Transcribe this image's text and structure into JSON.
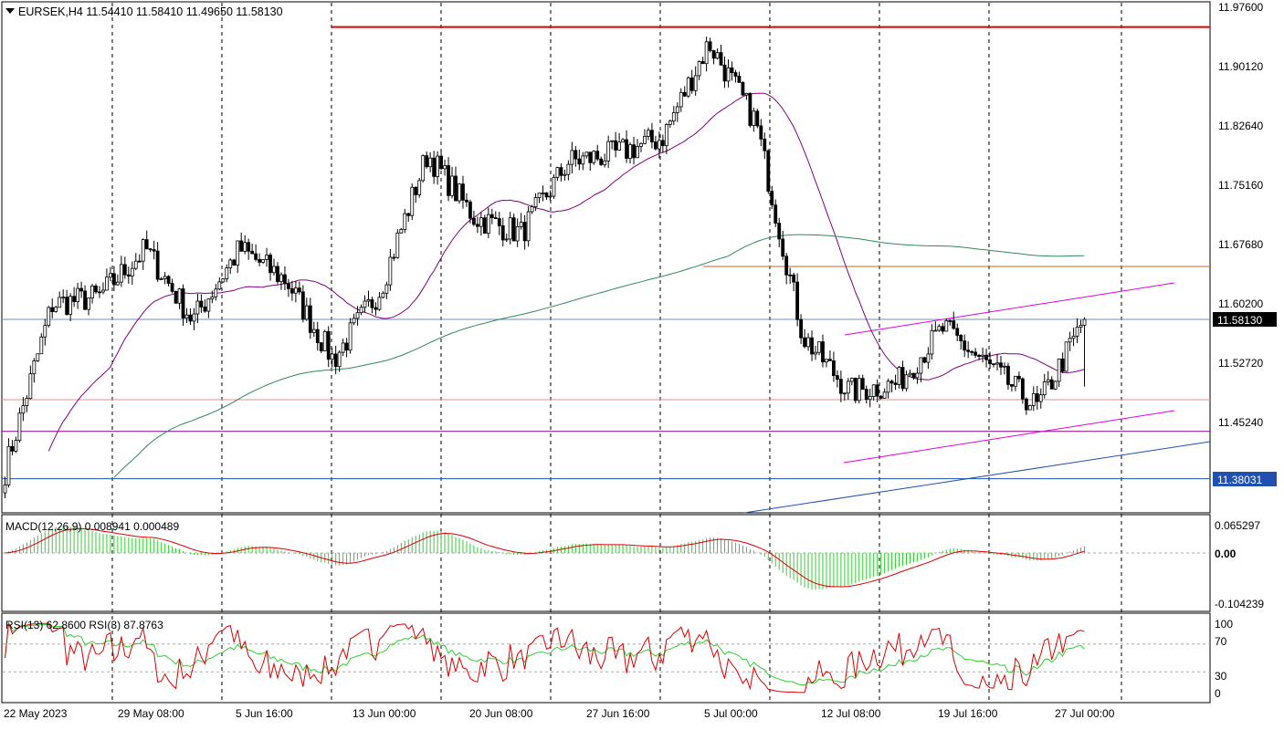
{
  "header": {
    "symbol_line": "EURSEK,H4  11.54410 11.58410 11.49650 11.58130"
  },
  "price_axis": {
    "ticks": [
      "11.97600",
      "11.90120",
      "11.82640",
      "11.75160",
      "11.67680",
      "11.60200",
      "11.52720",
      "11.45240"
    ],
    "current_price_label": "11.58130",
    "line_price_label": "11.38031"
  },
  "time_axis": {
    "labels": [
      "22 May 2023",
      "29 May 08:00",
      "5 Jun 16:00",
      "13 Jun 00:00",
      "20 Jun 08:00",
      "27 Jun 16:00",
      "5 Jul 00:00",
      "12 Jul 08:00",
      "19 Jul 16:00",
      "27 Jul 00:00"
    ]
  },
  "macd": {
    "label": "MACD(12,26,9) 0.008941 0.000489",
    "ticks": [
      "0.065297",
      "0.00",
      "-0.104239"
    ]
  },
  "rsi": {
    "label": "RSI(13) 62.8600  RSI(3) 87.8763",
    "ticks": [
      "100",
      "70",
      "30",
      "0"
    ]
  },
  "colors": {
    "bull": "#ffffff",
    "bear": "#000000",
    "ma_short": "#800080",
    "ma_long": "#2e8b57",
    "resistance": "#e00000",
    "orange_line": "#d2691e",
    "channel": "#e000e0",
    "blue_line": "#2050b0",
    "macd_hist": "#32cd32",
    "macd_signal": "#dd0000",
    "rsi13": "#32cd32",
    "rsi3": "#dd0000"
  },
  "chart_data": {
    "type": "candlestick",
    "symbol": "EURSEK",
    "timeframe": "H4",
    "ohlc_last": {
      "open": 11.5441,
      "high": 11.5841,
      "low": 11.4965,
      "close": 11.5813
    },
    "ylim": [
      11.3723,
      11.9839
    ],
    "grid": "vertical dashed",
    "closes_sampled": [
      {
        "t": "22 May 2023",
        "close": 11.39
      },
      {
        "t": "25 May",
        "close": 11.6
      },
      {
        "t": "29 May 08:00",
        "close": 11.61
      },
      {
        "t": "1 Jun",
        "close": 11.67
      },
      {
        "t": "5 Jun 16:00",
        "close": 11.58
      },
      {
        "t": "8 Jun",
        "close": 11.67
      },
      {
        "t": "13 Jun 00:00",
        "close": 11.63
      },
      {
        "t": "15 Jun",
        "close": 11.53
      },
      {
        "t": "17 Jun",
        "close": 11.62
      },
      {
        "t": "20 Jun 08:00",
        "close": 11.79
      },
      {
        "t": "22 Jun",
        "close": 11.71
      },
      {
        "t": "25 Jun",
        "close": 11.69
      },
      {
        "t": "27 Jun 16:00",
        "close": 11.78
      },
      {
        "t": "30 Jun",
        "close": 11.79
      },
      {
        "t": "3 Jul",
        "close": 11.81
      },
      {
        "t": "5 Jul 00:00",
        "close": 11.93
      },
      {
        "t": "7 Jul",
        "close": 11.83
      },
      {
        "t": "10 Jul",
        "close": 11.56
      },
      {
        "t": "12 Jul 08:00",
        "close": 11.49
      },
      {
        "t": "15 Jul",
        "close": 11.5
      },
      {
        "t": "19 Jul 16:00",
        "close": 11.57
      },
      {
        "t": "21 Jul",
        "close": 11.52
      },
      {
        "t": "24 Jul",
        "close": 11.47
      },
      {
        "t": "27 Jul 00:00",
        "close": 11.5813
      }
    ],
    "horizontal_levels": [
      {
        "price": 11.95,
        "color": "#e00000"
      },
      {
        "price": 11.648,
        "color": "#d2691e"
      },
      {
        "price": 11.5813,
        "color": "#7090b0"
      },
      {
        "price": 11.48,
        "color": "#e09090"
      },
      {
        "price": 11.44,
        "color": "#800080"
      },
      {
        "price": 11.3803,
        "color": "#2050b0"
      }
    ],
    "indicators": [
      "MACD(12,26,9)",
      "RSI(13)",
      "RSI(3)"
    ]
  }
}
